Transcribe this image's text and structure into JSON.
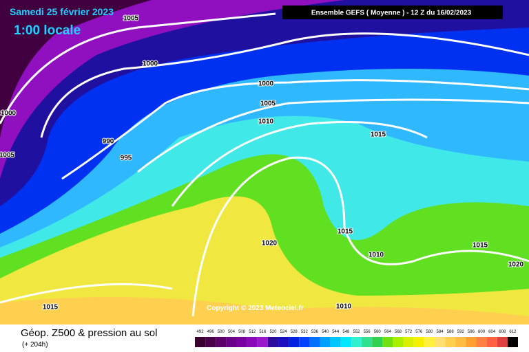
{
  "title": "Samedi 25 février 2023",
  "subtitle": "1:00 locale",
  "header": "Ensemble GEFS  ( Moyenne )  - 12 Z du 16/02/2023",
  "copyright": "Copyright © 2023 Meteociel.fr",
  "footer": {
    "title": "Géop. Z500 & pression au sol",
    "lead": "(+ 204h)"
  },
  "isobar_labels": [
    "1005",
    "1000",
    "1000",
    "1005",
    "1010",
    "1015",
    "990",
    "995",
    "1000",
    "1005",
    "1015",
    "1020",
    "1010",
    "1015",
    "1020",
    "1015",
    "1010"
  ],
  "scale": {
    "values": [
      492,
      496,
      500,
      504,
      508,
      512,
      516,
      520,
      524,
      528,
      532,
      536,
      540,
      544,
      548,
      552,
      556,
      560,
      564,
      568,
      572,
      576,
      580,
      584,
      588,
      592,
      596,
      600,
      604,
      608,
      612
    ],
    "colors": [
      "#3a0030",
      "#4a0048",
      "#5a0068",
      "#6a0088",
      "#7a00a0",
      "#8a08b8",
      "#9a18cc",
      "#2c0c9c",
      "#1a10c0",
      "#0020e0",
      "#0040ff",
      "#0070ff",
      "#00a0ff",
      "#00c8ff",
      "#00e8ff",
      "#30f0d0",
      "#30e090",
      "#30d050",
      "#70e010",
      "#a8f000",
      "#d8f000",
      "#f4f000",
      "#fff040",
      "#ffe070",
      "#ffd050",
      "#ffbc40",
      "#ffa030",
      "#ff8040",
      "#ff6040",
      "#e04040",
      "#000000"
    ]
  }
}
